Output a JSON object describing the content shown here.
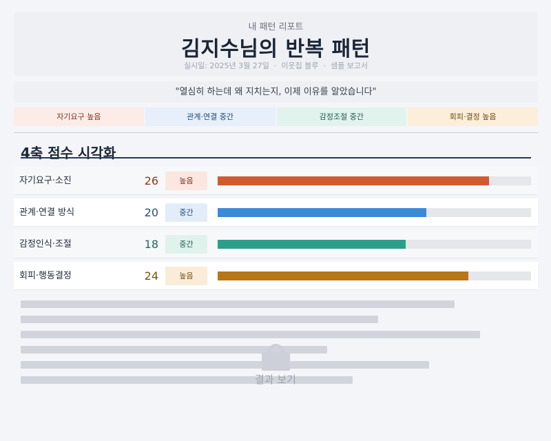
{
  "header": {
    "eyebrow": "내 패턴 리포트",
    "title": "김지수님의 반복 패턴",
    "date": "실시일: 2025년 3월 27일",
    "separator": "·",
    "nickname": "이웃집 블루",
    "report_type": "샘플 보고서"
  },
  "quote": "\"열심히 하는데 왜 지치는지, 이제 이유를 알았습니다\"",
  "tags": [
    {
      "label": "자기요구 높음",
      "bg": "#fbece8",
      "fg": "#7a3420"
    },
    {
      "label": "관계·연결 중간",
      "bg": "#e6effa",
      "fg": "#20487a"
    },
    {
      "label": "감정조절 중간",
      "bg": "#e2f3ee",
      "fg": "#1c5c4c"
    },
    {
      "label": "회피·결정 높음",
      "bg": "#fbeedb",
      "fg": "#6e4a12"
    }
  ],
  "section": {
    "title": "4축 점수 시각화"
  },
  "scores": {
    "max": 30,
    "items": [
      {
        "label": "자기요구·소진",
        "score": "26",
        "value": 26,
        "level": "높음",
        "color": "#d35930",
        "score_color": "#8a3a1c",
        "level_bg": "#fbe6e0",
        "level_fg": "#7a3420"
      },
      {
        "label": "관계·연결 방식",
        "score": "20",
        "value": 20,
        "level": "중간",
        "color": "#3b8ad8",
        "score_color": "#1e4f8a",
        "level_bg": "#e2edf9",
        "level_fg": "#20487a"
      },
      {
        "label": "감정인식·조절",
        "score": "18",
        "value": 18,
        "level": "중간",
        "color": "#2e9e8c",
        "score_color": "#1d6a5c",
        "level_bg": "#dff2ec",
        "level_fg": "#1c5c4c"
      },
      {
        "label": "회피·행동결정",
        "score": "24",
        "value": 24,
        "level": "높음",
        "color": "#b87618",
        "score_color": "#7a4e0f",
        "level_bg": "#fbecd8",
        "level_fg": "#6e4a12"
      }
    ]
  },
  "locked": {
    "label": "결과 보기",
    "icon": "lock-icon"
  }
}
